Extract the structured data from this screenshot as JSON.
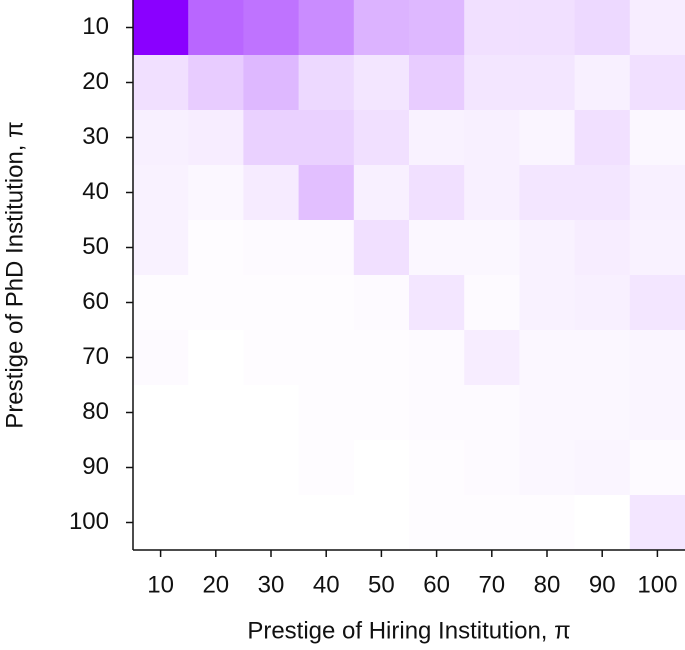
{
  "chart_data": {
    "type": "heatmap",
    "x_label": "Prestige of Hiring Institution, π",
    "y_label": "Prestige of PhD Institution, π",
    "x": [
      10,
      20,
      30,
      40,
      50,
      60,
      70,
      80,
      90,
      100
    ],
    "y": [
      10,
      20,
      30,
      40,
      50,
      60,
      70,
      80,
      90,
      100
    ],
    "z": [
      [
        1.0,
        0.6,
        0.55,
        0.45,
        0.3,
        0.28,
        0.12,
        0.12,
        0.15,
        0.07
      ],
      [
        0.12,
        0.2,
        0.28,
        0.15,
        0.1,
        0.2,
        0.1,
        0.1,
        0.06,
        0.12
      ],
      [
        0.06,
        0.07,
        0.18,
        0.18,
        0.12,
        0.05,
        0.06,
        0.04,
        0.12,
        0.03
      ],
      [
        0.05,
        0.03,
        0.08,
        0.25,
        0.06,
        0.12,
        0.06,
        0.1,
        0.1,
        0.06
      ],
      [
        0.05,
        0.01,
        0.02,
        0.02,
        0.12,
        0.03,
        0.03,
        0.05,
        0.07,
        0.05
      ],
      [
        0.01,
        0.01,
        0.01,
        0.01,
        0.02,
        0.1,
        0.02,
        0.05,
        0.06,
        0.1
      ],
      [
        0.02,
        0.0,
        0.01,
        0.01,
        0.01,
        0.02,
        0.07,
        0.03,
        0.03,
        0.04
      ],
      [
        0.0,
        0.0,
        0.0,
        0.01,
        0.01,
        0.02,
        0.02,
        0.03,
        0.03,
        0.04
      ],
      [
        0.0,
        0.0,
        0.0,
        0.01,
        0.0,
        0.01,
        0.02,
        0.03,
        0.04,
        0.02
      ],
      [
        0.0,
        0.0,
        0.0,
        0.0,
        0.0,
        0.01,
        0.01,
        0.01,
        0.0,
        0.1
      ]
    ],
    "zlim": [
      0,
      1
    ],
    "color": "#8a00ff"
  }
}
